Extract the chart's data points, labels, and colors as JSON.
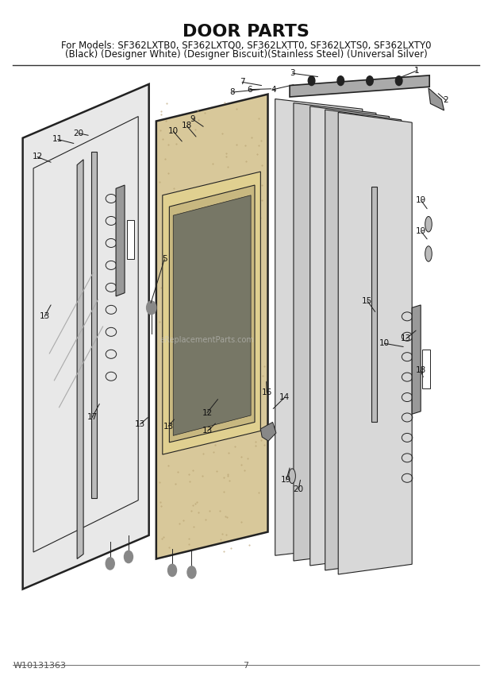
{
  "title": "DOOR PARTS",
  "subtitle_line1": "For Models: SF362LXTB0, SF362LXTQ0, SF362LXTT0, SF362LXTS0, SF362LXTY0",
  "subtitle_line2": "(Black) (Designer White) (Designer Biscuit)(Stainless Steel) (Universal Silver)",
  "footer_left": "W10131363",
  "footer_center": "7",
  "bg_color": "#ffffff",
  "title_fontsize": 16,
  "subtitle_fontsize": 8.5,
  "footer_fontsize": 8,
  "watermark": "eReplacementParts.com"
}
